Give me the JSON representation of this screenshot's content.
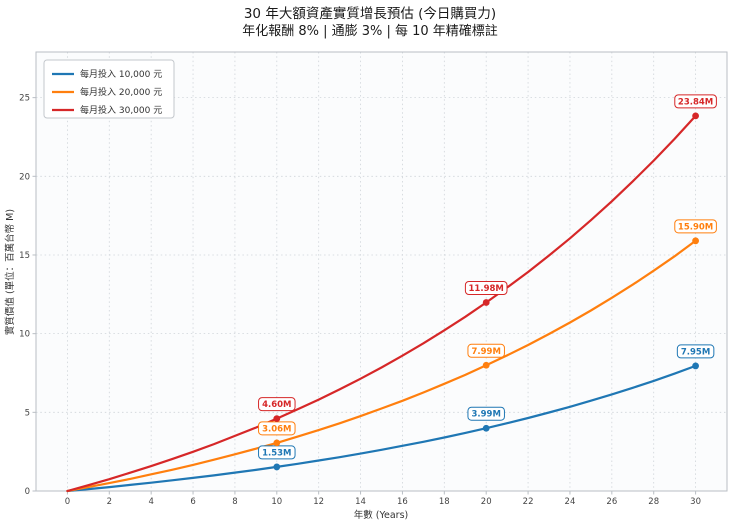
{
  "title": "30 年大額資產實質增長預估 (今日購買力)",
  "subtitle": "年化報酬 8% | 通膨 3% | 每 10 年精確標註",
  "chart_data": {
    "type": "line",
    "title": "30 年大額資產實質增長預估 (今日購買力)",
    "subtitle": "年化報酬 8% | 通膨 3% | 每 10 年精確標註",
    "xlabel": "年數 (Years)",
    "ylabel": "實質價值 (單位：百萬台幣 M)",
    "grid": true,
    "legend_position": "top-left",
    "x": [
      0,
      1,
      2,
      3,
      4,
      5,
      6,
      7,
      8,
      9,
      10,
      11,
      12,
      13,
      14,
      15,
      16,
      17,
      18,
      19,
      20,
      21,
      22,
      23,
      24,
      25,
      26,
      27,
      28,
      29,
      30
    ],
    "xticks": [
      0,
      2,
      4,
      6,
      8,
      10,
      12,
      14,
      16,
      18,
      20,
      22,
      24,
      26,
      28,
      30
    ],
    "yticks": [
      0,
      5,
      10,
      15,
      20,
      25
    ],
    "xlim": [
      -1.5,
      31.5
    ],
    "ylim": [
      0,
      27.9
    ],
    "colors": {
      "plot_bg": "#fbfcfd",
      "grid": "#cfd4d9",
      "spine": "#b9bec4",
      "tick_text": "#444444",
      "legend_border": "#c3c7cc",
      "axis_label": "#333333"
    },
    "series": [
      {
        "name": "每月投入 10,000 元",
        "color": "#1f77b4",
        "values": [
          0,
          0.12,
          0.25,
          0.39,
          0.53,
          0.68,
          0.83,
          0.99,
          1.17,
          1.34,
          1.53,
          1.73,
          1.94,
          2.15,
          2.38,
          2.62,
          2.87,
          3.13,
          3.4,
          3.69,
          3.99,
          4.31,
          4.64,
          4.99,
          5.35,
          5.74,
          6.14,
          6.56,
          7.0,
          7.46,
          7.95
        ],
        "annotations": [
          {
            "x": 10,
            "label": "1.53M"
          },
          {
            "x": 20,
            "label": "3.99M"
          },
          {
            "x": 30,
            "label": "7.95M"
          }
        ]
      },
      {
        "name": "每月投入 20,000 元",
        "color": "#ff7f0e",
        "values": [
          0,
          0.25,
          0.5,
          0.77,
          1.06,
          1.35,
          1.66,
          1.99,
          2.33,
          2.69,
          3.06,
          3.46,
          3.87,
          4.3,
          4.76,
          5.24,
          5.73,
          6.26,
          6.81,
          7.38,
          7.99,
          8.62,
          9.28,
          9.98,
          10.71,
          11.47,
          12.28,
          13.12,
          14.0,
          14.92,
          15.9
        ],
        "annotations": [
          {
            "x": 10,
            "label": "3.06M"
          },
          {
            "x": 20,
            "label": "7.99M"
          },
          {
            "x": 30,
            "label": "15.90M"
          }
        ]
      },
      {
        "name": "每月投入 30,000 元",
        "color": "#d62728",
        "values": [
          0,
          0.37,
          0.75,
          1.16,
          1.58,
          2.03,
          2.49,
          2.98,
          3.5,
          4.03,
          4.6,
          5.19,
          5.81,
          6.46,
          7.14,
          7.85,
          8.6,
          9.39,
          10.21,
          11.07,
          11.98,
          12.93,
          13.92,
          14.97,
          16.06,
          17.21,
          18.41,
          19.68,
          21.0,
          22.39,
          23.84
        ],
        "annotations": [
          {
            "x": 10,
            "label": "4.60M"
          },
          {
            "x": 20,
            "label": "11.98M"
          },
          {
            "x": 30,
            "label": "23.84M"
          }
        ]
      }
    ]
  }
}
